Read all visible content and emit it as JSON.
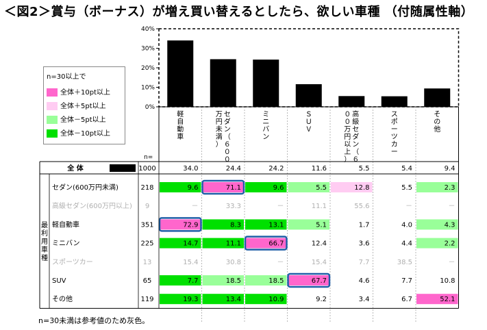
{
  "title": "＜図2＞賞与（ボーナス）が増え買い替えるとしたら、欲しい車種 （付随属性軸）",
  "colors": {
    "plus10": "#ff66cc",
    "plus5": "#ffccf2",
    "minus5": "#99ff99",
    "minus10": "#00e000",
    "gray_text": "#b0b0b0",
    "highlight_border": "#1f5fa8"
  },
  "legend": {
    "header": "n=30以上で",
    "items": [
      {
        "label": "全体＋10pt以上",
        "color": "#ff66cc"
      },
      {
        "label": "全体＋5pt以上",
        "color": "#ffccf2"
      },
      {
        "label": "全体－5pt以上",
        "color": "#99ff99"
      },
      {
        "label": "全体－10pt以上",
        "color": "#00e000"
      }
    ]
  },
  "side_label": "最利用車種",
  "n_label": "n=",
  "footnote": "n=30未満は参考値のため灰色。",
  "chart_data": {
    "type": "bar",
    "title": "",
    "categories": [
      "軽自動車",
      "セダン（600万円未満）",
      "ミニバン",
      "SUV",
      "高級セダン（600万円以上）",
      "スポーツカー",
      "その他"
    ],
    "categories_vertical": [
      "軽自動車",
      "セダン（６００万円未満）",
      "ミニバン",
      "ＳＵＶ",
      "高級セダン（６００万円以上）",
      "スポーツカー",
      "その他"
    ],
    "values": [
      34.0,
      24.4,
      24.2,
      11.6,
      5.5,
      5.4,
      9.4
    ],
    "ylim": [
      0,
      40
    ],
    "yticks": [
      "0%",
      "10%",
      "20%",
      "30%",
      "40%"
    ],
    "bar_color": "#000000",
    "legend_position": "left"
  },
  "table": {
    "total_row": {
      "label": "全 体",
      "n": "1000",
      "values": [
        "34.0",
        "24.4",
        "24.2",
        "11.6",
        "5.5",
        "5.4",
        "9.4"
      ]
    },
    "rows": [
      {
        "label": "セダン(600万円未満)",
        "n": "218",
        "gray": false,
        "values": [
          "9.6",
          "71.1",
          "9.6",
          "5.5",
          "12.8",
          "5.5",
          "2.3"
        ],
        "fills": [
          "minus10",
          "plus10",
          "minus10",
          "minus5",
          "plus5",
          "",
          "minus5"
        ],
        "highlight": 1
      },
      {
        "label": "高級セダン(600万円以上)",
        "n": "9",
        "gray": true,
        "values": [
          "－",
          "33.3",
          "－",
          "11.1",
          "55.6",
          "－",
          "－"
        ],
        "fills": [
          "",
          "",
          "",
          "",
          "",
          "",
          ""
        ],
        "highlight": -1
      },
      {
        "label": "軽自動車",
        "n": "351",
        "gray": false,
        "values": [
          "72.9",
          "8.3",
          "13.1",
          "5.1",
          "1.7",
          "4.0",
          "4.3"
        ],
        "fills": [
          "plus10",
          "minus10",
          "minus10",
          "minus5",
          "",
          "",
          "minus5"
        ],
        "highlight": 0
      },
      {
        "label": "ミニバン",
        "n": "225",
        "gray": false,
        "values": [
          "14.7",
          "11.1",
          "66.7",
          "12.4",
          "3.6",
          "4.4",
          "2.2"
        ],
        "fills": [
          "minus10",
          "minus10",
          "plus10",
          "",
          "",
          "",
          "minus5"
        ],
        "highlight": 2
      },
      {
        "label": "スポーツカー",
        "n": "13",
        "gray": true,
        "values": [
          "15.4",
          "30.8",
          "－",
          "15.4",
          "7.7",
          "38.5",
          "－"
        ],
        "fills": [
          "",
          "",
          "",
          "",
          "",
          "",
          ""
        ],
        "highlight": -1
      },
      {
        "label": "SUV",
        "n": "65",
        "gray": false,
        "values": [
          "7.7",
          "18.5",
          "18.5",
          "67.7",
          "4.6",
          "7.7",
          "10.8"
        ],
        "fills": [
          "minus10",
          "minus5",
          "minus5",
          "plus10",
          "",
          "",
          ""
        ],
        "highlight": 3
      },
      {
        "label": "その他",
        "n": "119",
        "gray": false,
        "values": [
          "19.3",
          "13.4",
          "10.9",
          "9.2",
          "3.4",
          "6.7",
          "52.1"
        ],
        "fills": [
          "minus10",
          "minus10",
          "minus10",
          "",
          "",
          "",
          "plus10"
        ],
        "highlight": -1
      }
    ]
  }
}
